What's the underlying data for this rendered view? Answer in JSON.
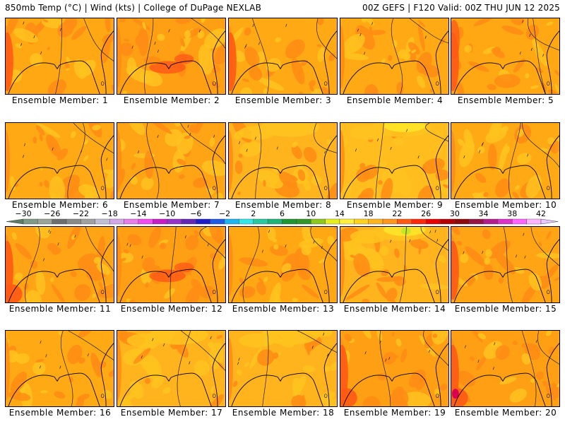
{
  "header": {
    "left": "850mb Temp (°C) | Wind (kts) | College of DuPage NEXLAB",
    "right": "00Z GEFS | F120 Valid: 00Z THU JUN 12 2025"
  },
  "colorbar": {
    "labels": [
      "−30",
      "−26",
      "−22",
      "−18",
      "−14",
      "−10",
      "−6",
      "−2",
      "2",
      "6",
      "10",
      "14",
      "18",
      "22",
      "26",
      "30",
      "34",
      "38",
      "42"
    ],
    "under_color": "#5f7b66",
    "over_color": "#e6c8ff",
    "colors": [
      "#7f9a86",
      "#9aa598",
      "#6e6e6e",
      "#8a8a8a",
      "#a0a0a0",
      "#c0c0d2",
      "#d2a8e8",
      "#e87ce8",
      "#f04cf0",
      "#c81ec8",
      "#9632c8",
      "#6428b4",
      "#1e1ec8",
      "#1e5ae6",
      "#1eb4f0",
      "#32e6e6",
      "#28c8a0",
      "#1eb478",
      "#1e9632",
      "#329628",
      "#8cc81e",
      "#e6f01e",
      "#fff03c",
      "#ffd21e",
      "#ffb41e",
      "#ff961e",
      "#ff5a14",
      "#ff280a",
      "#e60000",
      "#b40000",
      "#8c0a0a",
      "#961446",
      "#b41e8c",
      "#dc32c8",
      "#ff64ff",
      "#ffb4ff"
    ]
  },
  "shading_colors": {
    "warmer": "#ff8c14",
    "hot": "#ff5a14",
    "cooler": "#ffc31e",
    "coolest": "#ffe628",
    "green": "#c8e628",
    "extreme": "#dc0050"
  },
  "map_colors": {
    "coastline": "#000000",
    "contour": "#1e1e1e",
    "barb": "#000000"
  },
  "members": [
    {
      "label": "Ensemble Member: 1",
      "field_color": "#ffa814"
    },
    {
      "label": "Ensemble Member: 2",
      "field_color": "#ffa014"
    },
    {
      "label": "Ensemble Member: 3",
      "field_color": "#ffaa14"
    },
    {
      "label": "Ensemble Member: 4",
      "field_color": "#ffaa14"
    },
    {
      "label": "Ensemble Member: 5",
      "field_color": "#ffa814"
    },
    {
      "label": "Ensemble Member: 6",
      "field_color": "#ffaa14"
    },
    {
      "label": "Ensemble Member: 7",
      "field_color": "#ffa414"
    },
    {
      "label": "Ensemble Member: 8",
      "field_color": "#ffb41e"
    },
    {
      "label": "Ensemble Member: 9",
      "field_color": "#ffbe1e"
    },
    {
      "label": "Ensemble Member: 10",
      "field_color": "#ffaa14"
    },
    {
      "label": "Ensemble Member: 11",
      "field_color": "#ffa414"
    },
    {
      "label": "Ensemble Member: 12",
      "field_color": "#ffa014"
    },
    {
      "label": "Ensemble Member: 13",
      "field_color": "#ffa814"
    },
    {
      "label": "Ensemble Member: 14",
      "field_color": "#ffb41e"
    },
    {
      "label": "Ensemble Member: 15",
      "field_color": "#ffa414"
    },
    {
      "label": "Ensemble Member: 16",
      "field_color": "#ffaa14"
    },
    {
      "label": "Ensemble Member: 17",
      "field_color": "#ffb41e"
    },
    {
      "label": "Ensemble Member: 18",
      "field_color": "#ffb41e"
    },
    {
      "label": "Ensemble Member: 19",
      "field_color": "#ffa014"
    },
    {
      "label": "Ensemble Member: 20",
      "field_color": "#ffa014"
    }
  ]
}
